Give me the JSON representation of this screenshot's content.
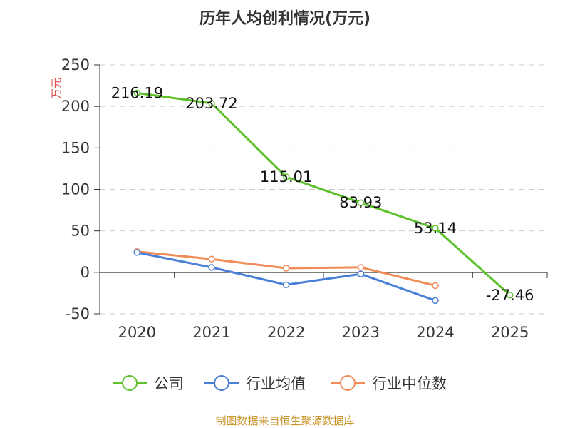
{
  "chart_data": {
    "type": "line",
    "title": "历年人均创利情况(万元)",
    "ylabel": "万元",
    "categories": [
      "2020",
      "2021",
      "2022",
      "2023",
      "2024",
      "2025"
    ],
    "yticks": [
      "250",
      "200",
      "150",
      "100",
      "50",
      "0",
      "-50"
    ],
    "ylim": [
      -50,
      250
    ],
    "grid": true,
    "legend_position": "bottom",
    "series": [
      {
        "name": "公司",
        "color": "#5cc12a",
        "values": [
          216.19,
          203.72,
          115.01,
          83.93,
          53.14,
          -27.46
        ],
        "labels": [
          "216.19",
          "203.72",
          "115.01",
          "83.93",
          "53.14",
          "-27.46"
        ]
      },
      {
        "name": "行业均值",
        "color": "#4a7fd8",
        "values": [
          24,
          6,
          -15,
          -2,
          -34,
          null
        ]
      },
      {
        "name": "行业中位数",
        "color": "#f08c5a",
        "values": [
          25,
          16,
          5,
          6,
          -16,
          null
        ]
      }
    ],
    "source": "制图数据来自恒生聚源数据库"
  }
}
